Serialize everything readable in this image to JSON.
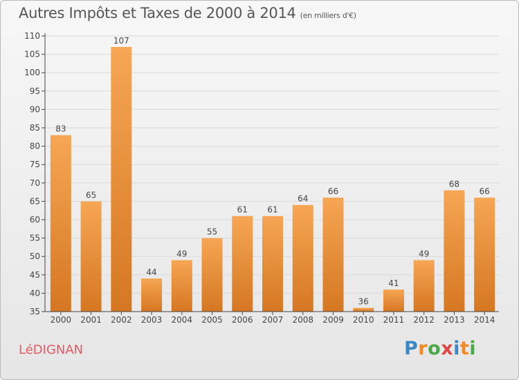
{
  "title": "Autres Impôts et Taxes de 2000 à 2014",
  "subtitle": "(en milliers d'€)",
  "location": "LéDIGNAN",
  "brand": {
    "letters": [
      "P",
      "r",
      "o",
      "x",
      "i",
      "t",
      "i"
    ],
    "colors": [
      "#3d86c6",
      "#f08a24",
      "#4aa84a",
      "#e14646",
      "#3d86c6",
      "#f08a24",
      "#4aa84a"
    ]
  },
  "colors": {
    "bar_light": "#f6a654",
    "bar_dark": "#d57722",
    "grid": "#d9d9d9",
    "axis": "#444444",
    "text": "#444444"
  },
  "chart_data": {
    "type": "bar",
    "title": "Autres Impôts et Taxes de 2000 à 2014",
    "subtitle": "(en milliers d'€)",
    "xlabel": "",
    "ylabel": "",
    "categories": [
      "2000",
      "2001",
      "2002",
      "2003",
      "2004",
      "2005",
      "2006",
      "2007",
      "2008",
      "2009",
      "2010",
      "2011",
      "2012",
      "2013",
      "2014"
    ],
    "values": [
      83,
      65,
      107,
      44,
      49,
      55,
      61,
      61,
      64,
      66,
      36,
      41,
      49,
      68,
      66
    ],
    "ylim": [
      35,
      110
    ],
    "yticks": [
      35,
      40,
      45,
      50,
      55,
      60,
      65,
      70,
      75,
      80,
      85,
      90,
      95,
      100,
      105,
      110
    ],
    "grid": true,
    "data_labels": true
  }
}
